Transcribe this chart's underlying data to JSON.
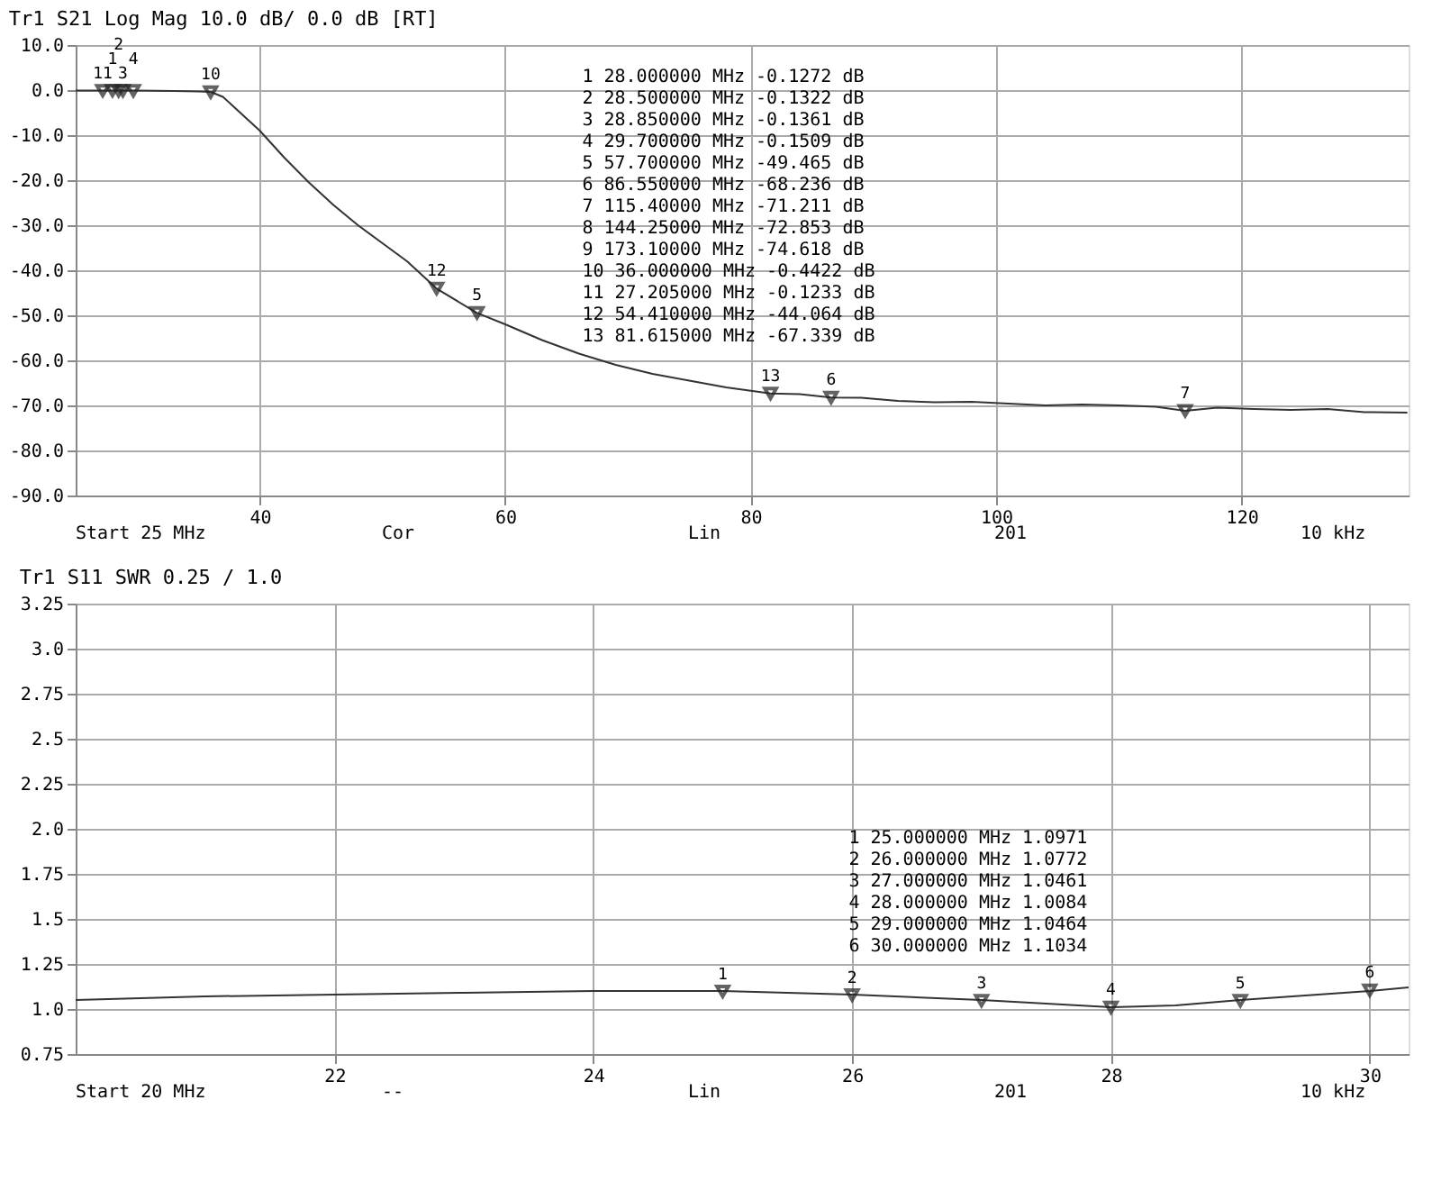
{
  "chart_data": [
    {
      "type": "line",
      "title": "Tr1 S21 Log Mag 10.0 dB/ 0.0 dB [RT]",
      "xlabel": "Start 25 MHz  Cor  Lin  201  10 kHz",
      "x": [
        25,
        27,
        30,
        33,
        35,
        36,
        37,
        38,
        40,
        42,
        44,
        46,
        48,
        50,
        52,
        54.41,
        57.7,
        60,
        63,
        66,
        69,
        72,
        75,
        78,
        81.615,
        84,
        86.55,
        89,
        92,
        95,
        98,
        101,
        104,
        107,
        110,
        113,
        115.4,
        118,
        121,
        124,
        127,
        130,
        133.5
      ],
      "series": [
        {
          "color": "#333333",
          "values": [
            -0.1,
            -0.1,
            -0.1,
            -0.2,
            -0.3,
            -0.4,
            -1.5,
            -4,
            -9,
            -15,
            -20.5,
            -25.5,
            -30,
            -34,
            -38,
            -44.06,
            -49.47,
            -52,
            -55.5,
            -58.5,
            -61,
            -63,
            -64.5,
            -66,
            -67.34,
            -67.5,
            -68.24,
            -68.3,
            -69,
            -69.3,
            -69.2,
            -69.6,
            -70,
            -69.8,
            -70,
            -70.3,
            -71.21,
            -70.5,
            -70.8,
            -71,
            -70.8,
            -71.5,
            -71.6
          ]
        }
      ],
      "xlim": [
        25,
        133.6
      ],
      "xticks": [
        40,
        60,
        80,
        100,
        120
      ],
      "ylim": [
        -90,
        10
      ],
      "yticks": [
        {
          "value": 10,
          "label": "10.0"
        },
        {
          "value": 0,
          "label": "0.0"
        },
        {
          "value": -10,
          "label": "-10.0"
        },
        {
          "value": -20,
          "label": "-20.0"
        },
        {
          "value": -30,
          "label": "-30.0"
        },
        {
          "value": -40,
          "label": "-40.0"
        },
        {
          "value": -50,
          "label": "-50.0"
        },
        {
          "value": -60,
          "label": "-60.0"
        },
        {
          "value": -70,
          "label": "-70.0"
        },
        {
          "value": -80,
          "label": "-80.0"
        },
        {
          "value": -90,
          "label": "-90.0"
        }
      ],
      "grid": true,
      "marker": "none",
      "line_style": "solid",
      "annotations": [
        {
          "text": "11",
          "x": 27.205,
          "y": -0.1233
        },
        {
          "text": "1",
          "x": 28.0,
          "y": -0.1272
        },
        {
          "text": "2",
          "x": 28.5,
          "y": -0.1322
        },
        {
          "text": "3",
          "x": 28.85,
          "y": -0.1361
        },
        {
          "text": "4",
          "x": 29.7,
          "y": -0.1509
        },
        {
          "text": "10",
          "x": 36.0,
          "y": -0.4422
        },
        {
          "text": "12",
          "x": 54.41,
          "y": -44.064
        },
        {
          "text": "5",
          "x": 57.7,
          "y": -49.465
        },
        {
          "text": "13",
          "x": 81.615,
          "y": -67.339
        },
        {
          "text": "6",
          "x": 86.55,
          "y": -68.236
        },
        {
          "text": "7",
          "x": 115.4,
          "y": -71.211
        },
        "1   28.000000 MHz  -0.1272 dB",
        "2   28.500000 MHz  -0.1322 dB",
        "3   28.850000 MHz  -0.1361 dB",
        "4   29.700000 MHz  -0.1509 dB",
        "5   57.700000 MHz  -49.465 dB",
        "6   86.550000 MHz  -68.236 dB",
        "7   115.40000 MHz  -71.211 dB",
        "8   144.25000 MHz  -72.853 dB",
        "9   173.10000 MHz  -74.618 dB",
        "10  36.000000 MHz  -0.4422 dB",
        "11  27.205000 MHz  -0.1233 dB",
        "12  54.410000 MHz  -44.064 dB",
        "13  81.615000 MHz  -67.339 dB"
      ]
    },
    {
      "type": "line",
      "title": "Tr1 S11 SWR 0.25 / 1.0",
      "xlabel": "Start 20 MHz  --  Lin  201  10 kHz",
      "x": [
        20,
        21,
        22,
        23,
        24,
        25,
        26,
        27,
        28,
        28.5,
        29,
        30,
        30.3
      ],
      "series": [
        {
          "color": "#333333",
          "values": [
            1.05,
            1.07,
            1.08,
            1.09,
            1.1,
            1.1,
            1.08,
            1.05,
            1.01,
            1.02,
            1.05,
            1.1,
            1.12
          ]
        }
      ],
      "xlim": [
        20,
        30.3
      ],
      "xticks": [
        22,
        24,
        26,
        28,
        30
      ],
      "ylim": [
        0.75,
        3.25
      ],
      "yticks": [
        3.25,
        {
          "value": 3.0,
          "label": "3.0"
        },
        2.75,
        2.5,
        2.25,
        {
          "value": 2.0,
          "label": "2.0"
        },
        1.75,
        1.5,
        1.25,
        {
          "value": 1.0,
          "label": "1.0"
        },
        0.75
      ],
      "grid": true,
      "marker": "none",
      "line_style": "solid",
      "annotations": [
        {
          "text": "1",
          "x": 25,
          "y": 1.0971
        },
        {
          "text": "2",
          "x": 26,
          "y": 1.0772
        },
        {
          "text": "3",
          "x": 27,
          "y": 1.0461
        },
        {
          "text": "4",
          "x": 28,
          "y": 1.0084
        },
        {
          "text": "5",
          "x": 29,
          "y": 1.0464
        },
        {
          "text": "6",
          "x": 30,
          "y": 1.1034
        },
        "1   25.000000 MHz   1.0971",
        "2   26.000000 MHz   1.0772",
        "3   27.000000 MHz   1.0461",
        "4   28.000000 MHz   1.0084",
        "5   29.000000 MHz   1.0464",
        "6   30.000000 MHz   1.1034"
      ]
    }
  ]
}
